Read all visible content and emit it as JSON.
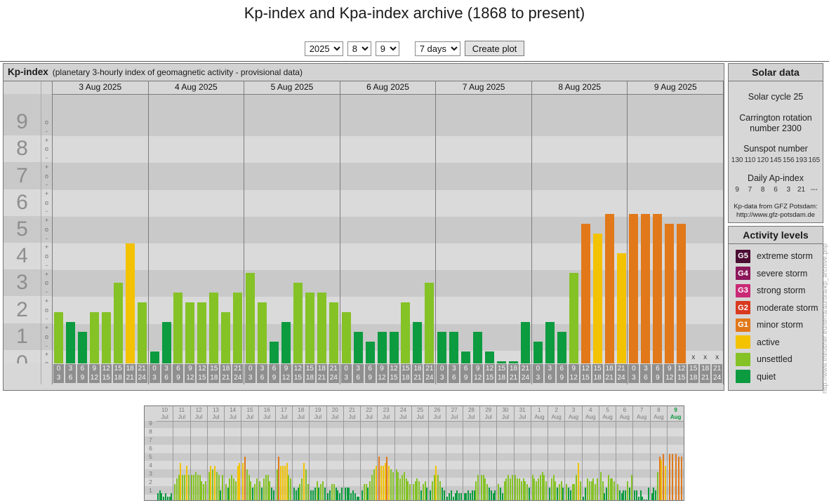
{
  "title": "Kp-index and Kpa-index archive (1868 to present)",
  "controls": {
    "year": "2025",
    "month": "8",
    "day": "9",
    "range": "7 days",
    "submit": "Create plot"
  },
  "solar_data": {
    "title": "Solar data",
    "cycle": "Solar cycle 25",
    "carrington_line1": "Carrington rotation",
    "carrington_line2": "number 2300",
    "sunspot_title": "Sunspot number",
    "sunspot_values": [
      "130",
      "110",
      "120",
      "145",
      "156",
      "193",
      "165"
    ],
    "ap_title": "Daily Ap-index",
    "ap_values": [
      "9",
      "7",
      "8",
      "6",
      "3",
      "21",
      "---"
    ],
    "credit_line1": "Kp-data from GFZ Potsdam:",
    "credit_line2": "http://www.gfz-potsdam.de"
  },
  "activity_levels": {
    "title": "Activity levels",
    "items": [
      {
        "code": "G5",
        "label": "extreme storm",
        "key": "extreme_storm"
      },
      {
        "code": "G4",
        "label": "severe storm",
        "key": "severe_storm"
      },
      {
        "code": "G3",
        "label": "strong storm",
        "key": "strong_storm"
      },
      {
        "code": "G2",
        "label": "moderate storm",
        "key": "moderate_storm"
      },
      {
        "code": "G1",
        "label": "minor storm",
        "key": "minor_storm"
      },
      {
        "code": "",
        "label": "active",
        "key": "active"
      },
      {
        "code": "",
        "label": "unsettled",
        "key": "unsettled"
      },
      {
        "code": "",
        "label": "quiet",
        "key": "quiet"
      }
    ]
  },
  "watermark": "http://www.theusner.eu/terra/aurora/kp_archive.php",
  "chart_data": {
    "type": "bar",
    "kp_colors": {
      "quiet": "#0c9b3f",
      "unsettled": "#85c226",
      "active": "#f3c200",
      "minor_storm": "#e1781a",
      "moderate_storm": "#d8391f",
      "strong_storm": "#c92a76",
      "severe_storm": "#8c175a",
      "extreme_storm": "#4c0c33"
    },
    "main": {
      "title": "Kp-index",
      "subtitle": "(planetary 3-hourly index of geomagnetic activity - provisional data)",
      "ylabel": "Kp",
      "y_axis_numbers": [
        "0",
        "1",
        "2",
        "3",
        "4",
        "5",
        "6",
        "7",
        "8",
        "9"
      ],
      "y_top_units": 10.05,
      "missing_marker": "x",
      "slot_hours": [
        [
          "0",
          "3"
        ],
        [
          "3",
          "6"
        ],
        [
          "6",
          "9"
        ],
        [
          "9",
          "12"
        ],
        [
          "12",
          "15"
        ],
        [
          "15",
          "18"
        ],
        [
          "18",
          "21"
        ],
        [
          "21",
          "24"
        ]
      ],
      "days": [
        {
          "date": "3 Aug 2025",
          "kp": [
            "2-",
            "1+",
            "1o",
            "2-",
            "2-",
            "3-",
            "4o",
            "2o"
          ]
        },
        {
          "date": "4 Aug 2025",
          "kp": [
            "0+",
            "1+",
            "2+",
            "2o",
            "2o",
            "2+",
            "2-",
            "2+"
          ]
        },
        {
          "date": "5 Aug 2025",
          "kp": [
            "3o",
            "2o",
            "1-",
            "1+",
            "3-",
            "2+",
            "2+",
            "2o"
          ]
        },
        {
          "date": "6 Aug 2025",
          "kp": [
            "2-",
            "1o",
            "1-",
            "1o",
            "1o",
            "2o",
            "1+",
            "3-"
          ]
        },
        {
          "date": "7 Aug 2025",
          "kp": [
            "1o",
            "1o",
            "0+",
            "1o",
            "0+",
            "0o",
            "0o",
            "1+"
          ]
        },
        {
          "date": "8 Aug 2025",
          "kp": [
            "1-",
            "1+",
            "1o",
            "3o",
            "5-",
            "4+",
            "5o",
            "4-"
          ]
        },
        {
          "date": "9 Aug 2025",
          "kp": [
            "5o",
            "5o",
            "5o",
            "5-",
            "5-",
            "x",
            "x",
            "x"
          ]
        }
      ]
    },
    "overview": {
      "y_axis_numbers": [
        "1",
        "2",
        "3",
        "4",
        "5",
        "6",
        "7",
        "8",
        "9"
      ],
      "y_top_units": 9.33,
      "selected_color": "#0a9a3a",
      "days": [
        {
          "day": "10",
          "month": "Jul",
          "kp": [
            "1-",
            "1o",
            "1-",
            "0+",
            "1-",
            "0+",
            "0+",
            "1-"
          ],
          "selected": false
        },
        {
          "day": "11",
          "month": "Jul",
          "kp": [
            "2-",
            "2+",
            "3-",
            "4o",
            "3-",
            "3-",
            "4-",
            "3-"
          ],
          "selected": false
        },
        {
          "day": "12",
          "month": "Jul",
          "kp": [
            "3-",
            "3-",
            "3o",
            "3-",
            "3-",
            "2o",
            "2-",
            "2o"
          ],
          "selected": false
        },
        {
          "day": "13",
          "month": "Jul",
          "kp": [
            "3o",
            "4-",
            "3+",
            "4-",
            "3o",
            "3-",
            "1o",
            "3-"
          ],
          "selected": false
        },
        {
          "day": "14",
          "month": "Jul",
          "kp": [
            "2-",
            "1+",
            "2+",
            "3-",
            "2+",
            "2o",
            "4-",
            "4o"
          ],
          "selected": false
        },
        {
          "day": "15",
          "month": "Jul",
          "kp": [
            "4o",
            "5-",
            "3+",
            "3-",
            "2o",
            "1+",
            "2-",
            "2+"
          ],
          "selected": false
        },
        {
          "day": "16",
          "month": "Jul",
          "kp": [
            "2o",
            "1+",
            "2+",
            "3-",
            "3-",
            "2o",
            "1+",
            "1o"
          ],
          "selected": false
        },
        {
          "day": "17",
          "month": "Jul",
          "kp": [
            "3+",
            "5-",
            "4-",
            "4-",
            "4-",
            "4o",
            "3-",
            "2+"
          ],
          "selected": false
        },
        {
          "day": "18",
          "month": "Jul",
          "kp": [
            "1+",
            "1o",
            "1+",
            "2-",
            "2+",
            "4o",
            "3+",
            "2-"
          ],
          "selected": false
        },
        {
          "day": "19",
          "month": "Jul",
          "kp": [
            "1o",
            "1o",
            "1+",
            "2o",
            "1+",
            "2-",
            "2o",
            "1+"
          ],
          "selected": false
        },
        {
          "day": "20",
          "month": "Jul",
          "kp": [
            "1-",
            "1o",
            "2-",
            "2-",
            "1+",
            "1o",
            "1-",
            "1+"
          ],
          "selected": false
        },
        {
          "day": "21",
          "month": "Jul",
          "kp": [
            "1+",
            "1+",
            "1+",
            "1-",
            "1o",
            "1-",
            "0+",
            "0+"
          ],
          "selected": false
        },
        {
          "day": "22",
          "month": "Jul",
          "kp": [
            "1o",
            "2-",
            "2-",
            "1+",
            "2o",
            "3-",
            "3+",
            "4-"
          ],
          "selected": false
        },
        {
          "day": "23",
          "month": "Jul",
          "kp": [
            "5-",
            "4-",
            "4-",
            "4o",
            "5-",
            "4-",
            "3+",
            "3o"
          ],
          "selected": false
        },
        {
          "day": "24",
          "month": "Jul",
          "kp": [
            "3+",
            "3o",
            "2+",
            "3-",
            "3o",
            "2+",
            "2o",
            "2-"
          ],
          "selected": false
        },
        {
          "day": "25",
          "month": "Jul",
          "kp": [
            "2-",
            "2o",
            "2+",
            "2o",
            "1o",
            "2-",
            "2o",
            "1+"
          ],
          "selected": false
        },
        {
          "day": "26",
          "month": "Jul",
          "kp": [
            "1o",
            "2o",
            "3-",
            "4-",
            "3-",
            "2o",
            "1+",
            "1o"
          ],
          "selected": false
        },
        {
          "day": "27",
          "month": "Jul",
          "kp": [
            "0+",
            "1-",
            "1o",
            "0+",
            "1-",
            "1o",
            "1-",
            "1-"
          ],
          "selected": false
        },
        {
          "day": "28",
          "month": "Jul",
          "kp": [
            "1-",
            "1-",
            "1o",
            "1-",
            "1o",
            "1o",
            "2o",
            "3-"
          ],
          "selected": false
        },
        {
          "day": "29",
          "month": "Jul",
          "kp": [
            "3-",
            "3-",
            "2+",
            "2-",
            "1+",
            "1o",
            "1-",
            "1o"
          ],
          "selected": false
        },
        {
          "day": "30",
          "month": "Jul",
          "kp": [
            "2-",
            "1+",
            "1-",
            "2o",
            "2+",
            "3-",
            "2+",
            "3-"
          ],
          "selected": false
        },
        {
          "day": "31",
          "month": "Jul",
          "kp": [
            "3-",
            "2+",
            "2+",
            "2o",
            "2+",
            "2o",
            "2-",
            "1+"
          ],
          "selected": false
        },
        {
          "day": "1",
          "month": "Aug",
          "kp": [
            "3-",
            "2+",
            "2o",
            "2+",
            "3-",
            "3o",
            "3-",
            "2o"
          ],
          "selected": false
        },
        {
          "day": "2",
          "month": "Aug",
          "kp": [
            "1+",
            "2+",
            "3-",
            "2o",
            "1+",
            "2-",
            "2o",
            "1+"
          ],
          "selected": false
        },
        {
          "day": "3",
          "month": "Aug",
          "kp": [
            "2-",
            "1+",
            "1o",
            "2-",
            "2-",
            "3-",
            "4o",
            "2o"
          ],
          "selected": false
        },
        {
          "day": "4",
          "month": "Aug",
          "kp": [
            "0+",
            "1+",
            "2+",
            "2o",
            "2o",
            "2+",
            "2-",
            "2+"
          ],
          "selected": false
        },
        {
          "day": "5",
          "month": "Aug",
          "kp": [
            "3o",
            "2o",
            "1-",
            "1+",
            "3-",
            "2+",
            "2+",
            "2o"
          ],
          "selected": false
        },
        {
          "day": "6",
          "month": "Aug",
          "kp": [
            "2-",
            "1o",
            "1-",
            "1o",
            "1o",
            "2o",
            "1+",
            "3-"
          ],
          "selected": false
        },
        {
          "day": "7",
          "month": "Aug",
          "kp": [
            "1o",
            "1o",
            "0+",
            "1o",
            "0+",
            "0o",
            "0o",
            "1+"
          ],
          "selected": false
        },
        {
          "day": "8",
          "month": "Aug",
          "kp": [
            "1-",
            "1+",
            "1o",
            "3o",
            "5-",
            "4+",
            "5o",
            "4-"
          ],
          "selected": false
        },
        {
          "day": "9",
          "month": "Aug",
          "kp": [
            "5o",
            "5o",
            "5o",
            "5-",
            "5-"
          ],
          "selected": true
        }
      ]
    },
    "stripe_colors": {
      "dark": "#c9c9c9",
      "light": "#dadada"
    }
  }
}
